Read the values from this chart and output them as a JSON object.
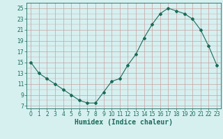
{
  "x": [
    0,
    1,
    2,
    3,
    4,
    5,
    6,
    7,
    8,
    9,
    10,
    11,
    12,
    13,
    14,
    15,
    16,
    17,
    18,
    19,
    20,
    21,
    22,
    23
  ],
  "y": [
    15,
    13,
    12,
    11,
    10,
    9,
    8,
    7.5,
    7.5,
    9.5,
    11.5,
    12,
    14.5,
    16.5,
    19.5,
    22,
    24,
    25,
    24.5,
    24,
    23,
    21,
    18,
    14.5
  ],
  "line_color": "#1a6b5a",
  "marker": "D",
  "marker_size": 2,
  "bg_color": "#d6f0f0",
  "grid_color_major": "#c8a0a0",
  "grid_color_minor": "#d6f0f0",
  "xlabel": "Humidex (Indice chaleur)",
  "xlabel_color": "#1a6b5a",
  "xlabel_fontsize": 7,
  "yticks": [
    7,
    9,
    11,
    13,
    15,
    17,
    19,
    21,
    23,
    25
  ],
  "xticks": [
    0,
    1,
    2,
    3,
    4,
    5,
    6,
    7,
    8,
    9,
    10,
    11,
    12,
    13,
    14,
    15,
    16,
    17,
    18,
    19,
    20,
    21,
    22,
    23
  ],
  "xlim": [
    -0.5,
    23.5
  ],
  "ylim": [
    6.5,
    26.0
  ],
  "tick_fontsize": 5.5,
  "tick_color": "#1a6b5a"
}
